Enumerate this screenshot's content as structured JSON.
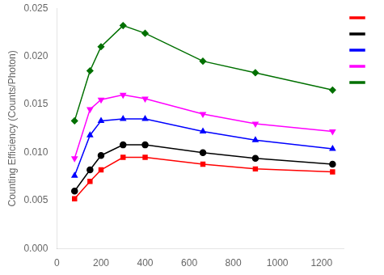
{
  "chart_data": {
    "type": "line",
    "x": [
      80,
      150,
      200,
      300,
      400,
      662,
      900,
      1250
    ],
    "series": [
      {
        "color": "#ff0000",
        "marker": "square",
        "values": [
          0.0052,
          0.007,
          0.0082,
          0.0095,
          0.0095,
          0.0088,
          0.0083,
          0.008
        ]
      },
      {
        "color": "#000000",
        "marker": "circle",
        "values": [
          0.006,
          0.0082,
          0.0097,
          0.0108,
          0.0108,
          0.01,
          0.0094,
          0.0088
        ]
      },
      {
        "color": "#0000ff",
        "marker": "triangle_up",
        "values": [
          0.0076,
          0.0118,
          0.0133,
          0.0135,
          0.0135,
          0.0122,
          0.0113,
          0.0104
        ]
      },
      {
        "color": "#ff00ff",
        "marker": "triangle_down",
        "values": [
          0.0094,
          0.0145,
          0.0155,
          0.016,
          0.0156,
          0.014,
          0.013,
          0.0122
        ]
      },
      {
        "color": "#007000",
        "marker": "diamond",
        "values": [
          0.0133,
          0.0185,
          0.021,
          0.0232,
          0.0224,
          0.0195,
          0.0183,
          0.0165
        ]
      }
    ],
    "ylabel": "Counting Efficiency (Counts/Photon)",
    "xlim": [
      0,
      1300
    ],
    "ylim": [
      0,
      0.025
    ],
    "xticks": [
      0,
      200,
      400,
      600,
      800,
      1000,
      1200
    ],
    "yticks": [
      {
        "value": 0,
        "label": "0.000"
      },
      {
        "value": 0.005,
        "label": "0.005"
      },
      {
        "value": 0.01,
        "label": "0.010"
      },
      {
        "value": 0.015,
        "label": "0.015"
      },
      {
        "value": 0.02,
        "label": "0.020"
      },
      {
        "value": 0.025,
        "label": "0.025"
      }
    ],
    "grid": false,
    "legend": "right"
  }
}
